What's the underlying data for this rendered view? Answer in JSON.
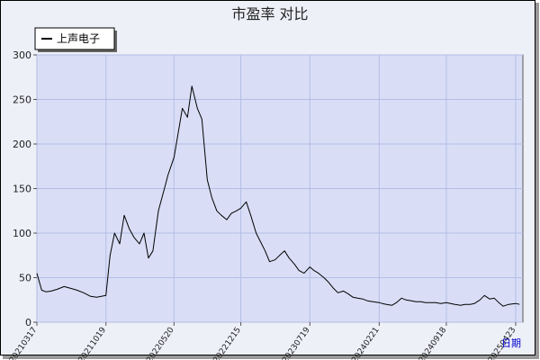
{
  "chart_data": {
    "type": "line",
    "title": "市盈率  对比",
    "xlabel": "日期",
    "ylabel": "",
    "ylim": [
      0,
      300
    ],
    "y_ticks": [
      0,
      50,
      100,
      150,
      200,
      250,
      300
    ],
    "x_ticks": [
      "20210317",
      "20211019",
      "20220520",
      "20221215",
      "20230719",
      "20240221",
      "20240918",
      "20250423"
    ],
    "legend": "top-left",
    "grid": true,
    "series": [
      {
        "name": "上声电子",
        "color": "#000000",
        "x": [
          "20210317",
          "20210401",
          "20210415",
          "20210501",
          "20210520",
          "20210610",
          "20210701",
          "20210720",
          "20210810",
          "20210901",
          "20210920",
          "20211019",
          "20211101",
          "20211115",
          "20211201",
          "20211215",
          "20211231",
          "20220115",
          "20220201",
          "20220215",
          "20220301",
          "20220315",
          "20220401",
          "20220420",
          "20220501",
          "20220520",
          "20220601",
          "20220615",
          "20220701",
          "20220715",
          "20220801",
          "20220815",
          "20220901",
          "20220915",
          "20221001",
          "20221015",
          "20221101",
          "20221115",
          "20221201",
          "20221215",
          "20230101",
          "20230115",
          "20230201",
          "20230215",
          "20230301",
          "20230315",
          "20230401",
          "20230415",
          "20230501",
          "20230515",
          "20230601",
          "20230615",
          "20230701",
          "20230719",
          "20230801",
          "20230815",
          "20230901",
          "20230915",
          "20231001",
          "20231015",
          "20231101",
          "20231115",
          "20231201",
          "20231215",
          "20240101",
          "20240115",
          "20240201",
          "20240221",
          "20240301",
          "20240315",
          "20240401",
          "20240415",
          "20240501",
          "20240515",
          "20240601",
          "20240615",
          "20240701",
          "20240715",
          "20240801",
          "20240815",
          "20240901",
          "20240918",
          "20241001",
          "20241015",
          "20241101",
          "20241115",
          "20241201",
          "20241215",
          "20250101",
          "20250115",
          "20250201",
          "20250215",
          "20250301",
          "20250315",
          "20250401",
          "20250423",
          "20250505"
        ],
        "values": [
          55,
          36,
          34,
          35,
          37,
          40,
          38,
          36,
          33,
          29,
          28,
          30,
          75,
          100,
          88,
          120,
          105,
          95,
          88,
          100,
          72,
          80,
          125,
          150,
          165,
          185,
          210,
          240,
          230,
          265,
          240,
          228,
          160,
          140,
          125,
          120,
          115,
          122,
          125,
          128,
          135,
          120,
          100,
          90,
          80,
          68,
          70,
          75,
          80,
          72,
          65,
          58,
          55,
          62,
          58,
          55,
          50,
          45,
          38,
          33,
          35,
          32,
          28,
          27,
          26,
          24,
          23,
          22,
          21,
          20,
          19,
          22,
          27,
          25,
          24,
          23,
          23,
          22,
          22,
          22,
          21,
          22,
          21,
          20,
          19,
          20,
          20,
          21,
          25,
          30,
          26,
          27,
          22,
          18,
          20,
          21,
          20
        ]
      }
    ]
  }
}
